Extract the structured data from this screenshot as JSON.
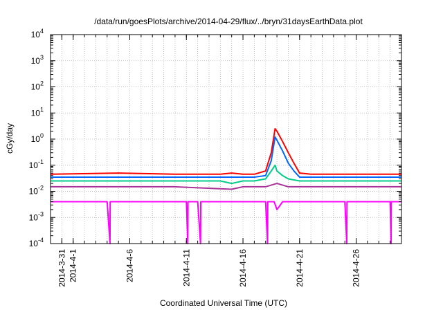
{
  "chart_data": {
    "type": "line",
    "title": "/data/run/goesPlots/archive/2014-04-29/flux/../bryn/31daysEarthData.plot",
    "xlabel": "Coordinated Universal Time (UTC)",
    "ylabel": "cGy/day",
    "yscale": "log",
    "ylim": [
      0.0001,
      10000
    ],
    "xlim": [
      "2014-03-30",
      "2014-04-30"
    ],
    "y_ticks": [
      {
        "value": 0.0001,
        "base": "10",
        "exp": "-4"
      },
      {
        "value": 0.001,
        "base": "10",
        "exp": "-3"
      },
      {
        "value": 0.01,
        "base": "10",
        "exp": "-2"
      },
      {
        "value": 0.1,
        "base": "10",
        "exp": "-1"
      },
      {
        "value": 1,
        "base": "10",
        "exp": "0"
      },
      {
        "value": 10,
        "base": "10",
        "exp": "1"
      },
      {
        "value": 100,
        "base": "10",
        "exp": "2"
      },
      {
        "value": 1000,
        "base": "10",
        "exp": "3"
      },
      {
        "value": 10000,
        "base": "10",
        "exp": "4"
      }
    ],
    "x_ticks": [
      {
        "date": "2014-03-31",
        "label": "2014-3-31"
      },
      {
        "date": "2014-04-01",
        "label": "2014-4-1"
      },
      {
        "date": "2014-04-06",
        "label": "2014-4-6"
      },
      {
        "date": "2014-04-11",
        "label": "2014-4-11"
      },
      {
        "date": "2014-04-16",
        "label": "2014-4-16"
      },
      {
        "date": "2014-04-21",
        "label": "2014-4-21"
      },
      {
        "date": "2014-04-26",
        "label": "2014-4-26"
      }
    ],
    "grid": true,
    "series": [
      {
        "color": "#ff0000",
        "x": [
          "2014-03-30",
          "2014-04-05",
          "2014-04-10",
          "2014-04-14",
          "2014-04-15",
          "2014-04-16",
          "2014-04-17",
          "2014-04-18",
          "2014-04-18T12:00",
          "2014-04-18T20:00",
          "2014-04-19",
          "2014-04-19T12:00",
          "2014-04-20",
          "2014-04-20T12:00",
          "2014-04-21",
          "2014-04-22",
          "2014-04-26",
          "2014-04-30"
        ],
        "values": [
          0.045,
          0.05,
          0.045,
          0.045,
          0.05,
          0.045,
          0.045,
          0.06,
          0.3,
          2.5,
          2.0,
          0.8,
          0.3,
          0.12,
          0.05,
          0.045,
          0.045,
          0.045
        ]
      },
      {
        "color": "#0066ff",
        "x": [
          "2014-03-30",
          "2014-04-05",
          "2014-04-10",
          "2014-04-14",
          "2014-04-15",
          "2014-04-16",
          "2014-04-17",
          "2014-04-18",
          "2014-04-18T12:00",
          "2014-04-18T20:00",
          "2014-04-19",
          "2014-04-19T12:00",
          "2014-04-20",
          "2014-04-20T12:00",
          "2014-04-21",
          "2014-04-22",
          "2014-04-26",
          "2014-04-30"
        ],
        "values": [
          0.035,
          0.035,
          0.035,
          0.035,
          0.035,
          0.035,
          0.035,
          0.04,
          0.15,
          1.2,
          0.9,
          0.35,
          0.12,
          0.06,
          0.035,
          0.035,
          0.035,
          0.035
        ]
      },
      {
        "color": "#00cc88",
        "x": [
          "2014-03-30",
          "2014-04-05",
          "2014-04-10",
          "2014-04-14",
          "2014-04-15",
          "2014-04-16",
          "2014-04-17",
          "2014-04-18",
          "2014-04-18T12:00",
          "2014-04-18T20:00",
          "2014-04-19",
          "2014-04-19T12:00",
          "2014-04-20",
          "2014-04-21",
          "2014-04-22",
          "2014-04-30"
        ],
        "values": [
          0.025,
          0.025,
          0.025,
          0.025,
          0.02,
          0.025,
          0.025,
          0.03,
          0.06,
          0.1,
          0.06,
          0.04,
          0.03,
          0.025,
          0.025,
          0.025
        ]
      },
      {
        "color": "#aa3399",
        "x": [
          "2014-03-30",
          "2014-04-10",
          "2014-04-15",
          "2014-04-16",
          "2014-04-17",
          "2014-04-18",
          "2014-04-19",
          "2014-04-20",
          "2014-04-30"
        ],
        "values": [
          0.015,
          0.015,
          0.012,
          0.015,
          0.015,
          0.015,
          0.02,
          0.015,
          0.015
        ]
      },
      {
        "color": "#ff00ff",
        "x": [
          "2014-03-30",
          "2014-04-04",
          "2014-04-04T06:00",
          "2014-04-04T06:30",
          "2014-04-11",
          "2014-04-11T03:00",
          "2014-04-11T03:30",
          "2014-04-12",
          "2014-04-12T06:00",
          "2014-04-12T06:30",
          "2014-04-15",
          "2014-04-17",
          "2014-04-18",
          "2014-04-18T04:00",
          "2014-04-18T04:30",
          "2014-04-18T18:00",
          "2014-04-19",
          "2014-04-19T12:00",
          "2014-04-20",
          "2014-04-25",
          "2014-04-25T04:00",
          "2014-04-25T04:30",
          "2014-04-29",
          "2014-04-29T02:00",
          "2014-04-29T02:30",
          "2014-04-30"
        ],
        "values": [
          0.004,
          0.004,
          0.0001,
          0.004,
          0.004,
          0.0001,
          0.004,
          0.004,
          0.0001,
          0.004,
          0.004,
          0.004,
          0.004,
          0.0001,
          0.004,
          0.004,
          0.002,
          0.004,
          0.004,
          0.004,
          0.0001,
          0.004,
          0.004,
          0.0001,
          0.004,
          0.004
        ]
      }
    ]
  }
}
